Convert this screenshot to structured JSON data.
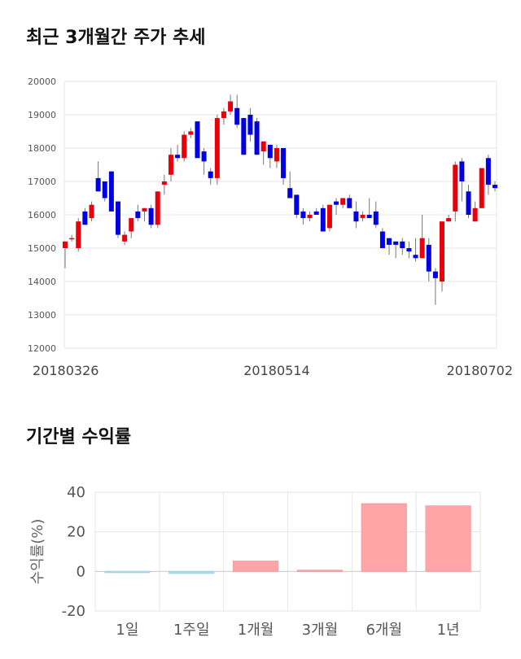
{
  "sections": {
    "price_title": "최근 3개월간 주가 추세",
    "returns_title": "기간별 수익률"
  },
  "colors": {
    "up": "#e8000b",
    "down": "#0000e0",
    "wick": "#777777",
    "grid": "#e6e6e6",
    "bar_positive": "#ffa5a8",
    "bar_negative": "#a8dff0"
  },
  "chart_data": [
    {
      "type": "candlestick",
      "title": "최근 3개월간 주가 추세",
      "ylim": [
        12000,
        20000
      ],
      "yticks": [
        "20000",
        "19000",
        "18000",
        "17000",
        "16000",
        "15000",
        "14000",
        "13000",
        "12000"
      ],
      "xtick_labels": [
        {
          "index": 0,
          "label": "20180326"
        },
        {
          "index": 32,
          "label": "20180514"
        },
        {
          "index": 64,
          "label": "20180702"
        }
      ],
      "ohlc": [
        [
          15000,
          15200,
          14400,
          15200
        ],
        [
          15300,
          15400,
          15200,
          15300
        ],
        [
          15000,
          15900,
          14900,
          15800
        ],
        [
          16100,
          16200,
          15700,
          15700
        ],
        [
          15900,
          16400,
          15800,
          16300
        ],
        [
          17100,
          17600,
          16700,
          16700
        ],
        [
          17000,
          17000,
          16400,
          16500
        ],
        [
          17300,
          17300,
          16100,
          16100
        ],
        [
          16400,
          16400,
          15300,
          15400
        ],
        [
          15200,
          15500,
          15100,
          15400
        ],
        [
          15500,
          15900,
          15300,
          15900
        ],
        [
          16100,
          16300,
          15800,
          15900
        ],
        [
          16100,
          16200,
          15800,
          16200
        ],
        [
          16200,
          16300,
          15600,
          15700
        ],
        [
          15700,
          16700,
          15600,
          16700
        ],
        [
          16900,
          17200,
          16600,
          17000
        ],
        [
          17200,
          18000,
          17000,
          17800
        ],
        [
          17800,
          18100,
          17600,
          17700
        ],
        [
          17700,
          18500,
          17600,
          18400
        ],
        [
          18400,
          18600,
          18300,
          18500
        ],
        [
          18800,
          18800,
          17700,
          17700
        ],
        [
          17900,
          18000,
          17200,
          17600
        ],
        [
          17300,
          17400,
          16900,
          17100
        ],
        [
          17100,
          19000,
          16900,
          18900
        ],
        [
          18900,
          19200,
          18700,
          19100
        ],
        [
          19100,
          19600,
          19000,
          19400
        ],
        [
          19200,
          19600,
          18600,
          18700
        ],
        [
          18900,
          18900,
          17800,
          17800
        ],
        [
          19000,
          19200,
          18200,
          18400
        ],
        [
          18800,
          18900,
          17800,
          17800
        ],
        [
          17900,
          18200,
          17500,
          18200
        ],
        [
          18100,
          18100,
          17400,
          17700
        ],
        [
          17600,
          18100,
          17400,
          18000
        ],
        [
          18000,
          18000,
          16900,
          17100
        ],
        [
          16800,
          17300,
          16500,
          16500
        ],
        [
          16600,
          16600,
          15900,
          16000
        ],
        [
          16100,
          16200,
          15700,
          15900
        ],
        [
          15900,
          16100,
          15800,
          16000
        ],
        [
          16100,
          16200,
          16000,
          16000
        ],
        [
          16200,
          16300,
          15500,
          15500
        ],
        [
          15600,
          16300,
          15500,
          16300
        ],
        [
          16400,
          16500,
          16000,
          16300
        ],
        [
          16300,
          16500,
          16200,
          16500
        ],
        [
          16500,
          16600,
          16200,
          16200
        ],
        [
          16100,
          16400,
          15600,
          15800
        ],
        [
          15900,
          16100,
          15800,
          16000
        ],
        [
          16000,
          16500,
          15900,
          15900
        ],
        [
          16100,
          16400,
          15600,
          15700
        ],
        [
          15500,
          15600,
          15000,
          15000
        ],
        [
          15300,
          15300,
          14800,
          15100
        ],
        [
          15200,
          15200,
          14700,
          15100
        ],
        [
          15200,
          15300,
          14800,
          15000
        ],
        [
          15000,
          15200,
          14700,
          14900
        ],
        [
          14800,
          15300,
          14600,
          14700
        ],
        [
          14700,
          16000,
          14700,
          15300
        ],
        [
          15100,
          15300,
          14000,
          14300
        ],
        [
          14300,
          14400,
          13300,
          14100
        ],
        [
          14000,
          15800,
          13700,
          15800
        ],
        [
          15800,
          16000,
          15800,
          15900
        ],
        [
          16100,
          17600,
          15800,
          17500
        ],
        [
          17600,
          17700,
          16400,
          17000
        ],
        [
          16700,
          16900,
          15900,
          16000
        ],
        [
          15800,
          16400,
          15800,
          16200
        ],
        [
          16200,
          17400,
          16200,
          17400
        ],
        [
          17700,
          17800,
          16600,
          16900
        ],
        [
          16900,
          17000,
          16700,
          16800
        ]
      ]
    },
    {
      "type": "bar",
      "title": "기간별 수익률",
      "ylabel": "수익률(%)",
      "ylim": [
        -20,
        40
      ],
      "yticks": [
        "40",
        "20",
        "0",
        "-20"
      ],
      "categories": [
        "1일",
        "1주일",
        "1개월",
        "3개월",
        "6개월",
        "1년"
      ],
      "values": [
        -0.3,
        -1.0,
        5.2,
        0.6,
        34.2,
        33.1
      ]
    }
  ]
}
